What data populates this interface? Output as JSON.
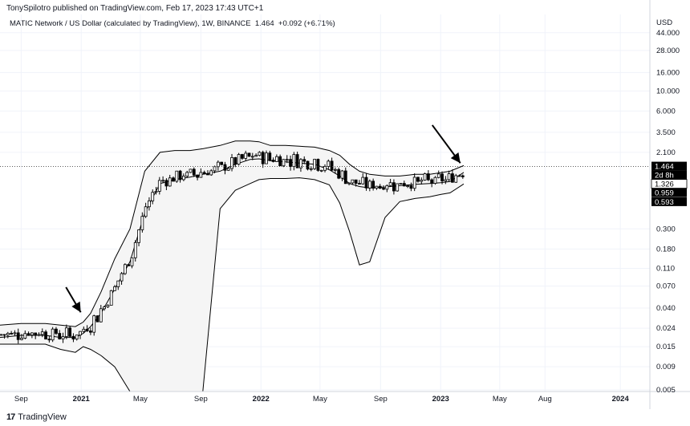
{
  "header": {
    "published": "TonySpilotro published on TradingView.com, Feb 17, 2023 17:43 UTC+1",
    "symbol": "MATIC Network / US Dollar (calculated by TradingView), 1W, BINANCE",
    "price": "1.464",
    "change": "+0.092 (+6.71%)"
  },
  "footer": {
    "logo_glyph": "17",
    "brand": "TradingView"
  },
  "chart_data": {
    "type": "candlestick",
    "title": "MATIC Network / US Dollar (calculated by TradingView), 1W, BINANCE",
    "y_scale": "log",
    "y_currency": "USD",
    "y_ticks": [
      "44.000",
      "28.000",
      "16.000",
      "10.000",
      "6.000",
      "3.500",
      "2.100",
      "0.300",
      "0.180",
      "0.110",
      "0.070",
      "0.040",
      "0.024",
      "0.015",
      "0.009",
      "0.005"
    ],
    "x_ticks": [
      "Sep",
      "2021",
      "May",
      "Sep",
      "2022",
      "May",
      "Sep",
      "2023",
      "May",
      "Aug",
      "2024"
    ],
    "x_tick_dates": [
      "2020-09-01",
      "2021-01-01",
      "2021-05-01",
      "2021-09-01",
      "2022-01-01",
      "2022-05-01",
      "2022-09-01",
      "2023-01-01",
      "2023-05-01",
      "2023-08-01",
      "2024-01-01"
    ],
    "x_range": [
      "2020-07-20",
      "2024-03-01"
    ],
    "y_range": [
      0.0048,
      70
    ],
    "price_labels": [
      {
        "text": "1.464",
        "value": 1.464,
        "style": "dark"
      },
      {
        "text": "2d 8h",
        "value": 1.38,
        "style": "dark-sub"
      },
      {
        "text": "1.326",
        "value": 1.326,
        "style": "light"
      },
      {
        "text": "0.959",
        "value": 0.959,
        "style": "dark"
      },
      {
        "text": "0.593",
        "value": 0.593,
        "style": "dark"
      }
    ],
    "last_price": 1.464,
    "band_series": {
      "dates": [
        "2020-07-20",
        "2020-09-01",
        "2020-10-20",
        "2020-11-20",
        "2020-12-20",
        "2021-01-05",
        "2021-01-20",
        "2021-02-10",
        "2021-03-10",
        "2021-04-10",
        "2021-05-10",
        "2021-06-10",
        "2021-07-10",
        "2021-08-10",
        "2021-09-05",
        "2021-10-10",
        "2021-11-10",
        "2021-12-10",
        "2021-12-28",
        "2022-01-20",
        "2022-02-20",
        "2022-03-20",
        "2022-04-20",
        "2022-05-20",
        "2022-06-10",
        "2022-06-30",
        "2022-07-20",
        "2022-08-10",
        "2022-09-10",
        "2022-10-10",
        "2022-11-10",
        "2022-12-10",
        "2023-01-01",
        "2023-01-20",
        "2023-02-17"
      ],
      "upper": [
        0.026,
        0.027,
        0.027,
        0.026,
        0.025,
        0.028,
        0.035,
        0.06,
        0.14,
        0.3,
        1.3,
        2.1,
        2.2,
        2.2,
        2.3,
        2.5,
        2.8,
        2.8,
        2.75,
        2.5,
        2.5,
        2.45,
        2.4,
        2.2,
        1.95,
        1.55,
        1.3,
        1.2,
        1.15,
        1.15,
        1.2,
        1.2,
        1.25,
        1.3,
        1.5
      ],
      "middle": [
        0.019,
        0.02,
        0.02,
        0.019,
        0.019,
        0.021,
        0.025,
        0.035,
        0.065,
        0.13,
        0.45,
        0.95,
        1.05,
        1.12,
        1.2,
        1.3,
        1.55,
        1.75,
        1.78,
        1.7,
        1.65,
        1.6,
        1.55,
        1.35,
        1.15,
        0.95,
        0.88,
        0.85,
        0.87,
        0.9,
        0.93,
        0.95,
        0.97,
        1.0,
        1.26
      ],
      "lower": [
        0.016,
        0.016,
        0.016,
        0.014,
        0.013,
        0.015,
        0.014,
        0.012,
        0.009,
        0.0048,
        0.0048,
        0.0048,
        0.0048,
        0.0048,
        0.0048,
        0.5,
        0.8,
        0.95,
        1.05,
        1.08,
        1.08,
        1.1,
        1.05,
        0.92,
        0.58,
        0.28,
        0.12,
        0.13,
        0.4,
        0.6,
        0.65,
        0.68,
        0.72,
        0.75,
        0.94
      ]
    },
    "arrows": [
      {
        "from": [
          "2020-12-01",
          0.068
        ],
        "to": [
          "2020-12-31",
          0.036
        ]
      },
      {
        "from": [
          "2022-12-15",
          4.2
        ],
        "to": [
          "2023-02-10",
          1.6
        ]
      }
    ]
  }
}
